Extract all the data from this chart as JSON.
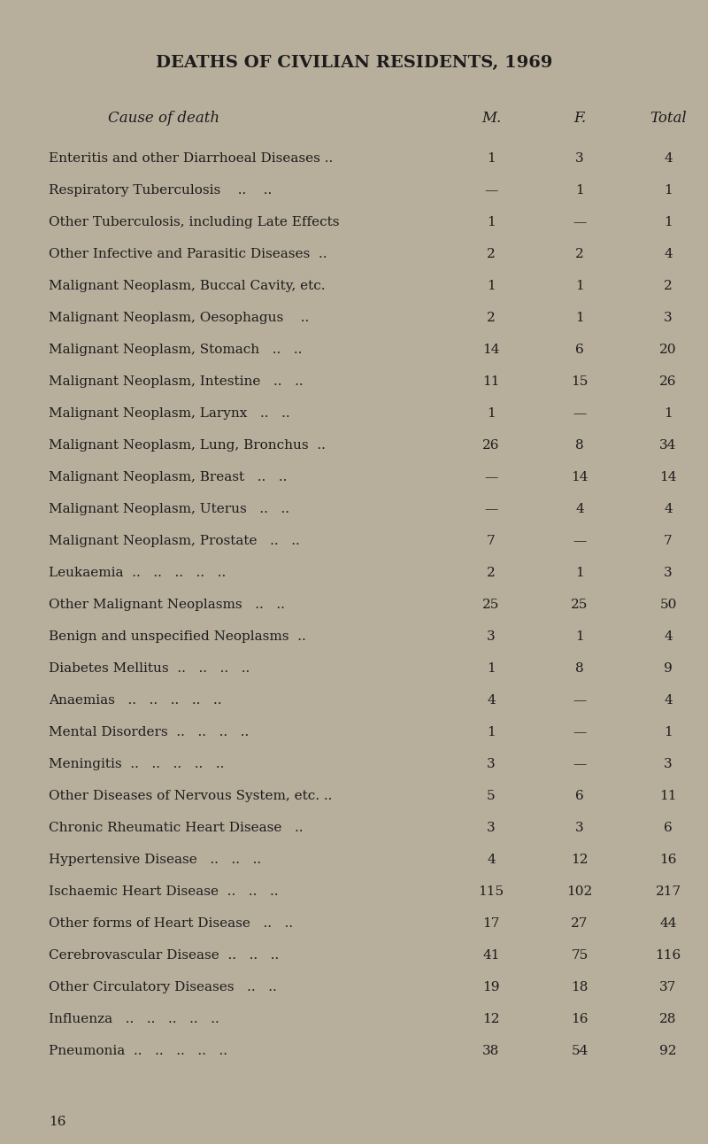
{
  "title": "DEATHS OF CIVILIAN RESIDENTS, 1969",
  "header": [
    "Cause of death",
    "M.",
    "F.",
    "Total"
  ],
  "rows": [
    [
      "Enteritis and other Diarrhoeal Diseases ..",
      "1",
      "3",
      "4"
    ],
    [
      "Respiratory Tuberculosis    ..    ..",
      "—",
      "1",
      "1"
    ],
    [
      "Other Tuberculosis, including Late Effects",
      "1",
      "—",
      "1"
    ],
    [
      "Other Infective and Parasitic Diseases  ..",
      "2",
      "2",
      "4"
    ],
    [
      "Malignant Neoplasm, Buccal Cavity, etc.",
      "1",
      "1",
      "2"
    ],
    [
      "Malignant Neoplasm, Oesophagus    ..",
      "2",
      "1",
      "3"
    ],
    [
      "Malignant Neoplasm, Stomach   ..   ..",
      "14",
      "6",
      "20"
    ],
    [
      "Malignant Neoplasm, Intestine   ..   ..",
      "11",
      "15",
      "26"
    ],
    [
      "Malignant Neoplasm, Larynx   ..   ..",
      "1",
      "—",
      "1"
    ],
    [
      "Malignant Neoplasm, Lung, Bronchus  ..",
      "26",
      "8",
      "34"
    ],
    [
      "Malignant Neoplasm, Breast   ..   ..",
      "—",
      "14",
      "14"
    ],
    [
      "Malignant Neoplasm, Uterus   ..   ..",
      "—",
      "4",
      "4"
    ],
    [
      "Malignant Neoplasm, Prostate   ..   ..",
      "7",
      "—",
      "7"
    ],
    [
      "Leukaemia  ..   ..   ..   ..   ..",
      "2",
      "1",
      "3"
    ],
    [
      "Other Malignant Neoplasms   ..   ..",
      "25",
      "25",
      "50"
    ],
    [
      "Benign and unspecified Neoplasms  ..",
      "3",
      "1",
      "4"
    ],
    [
      "Diabetes Mellitus  ..   ..   ..   ..",
      "1",
      "8",
      "9"
    ],
    [
      "Anaemias   ..   ..   ..   ..   ..",
      "4",
      "—",
      "4"
    ],
    [
      "Mental Disorders  ..   ..   ..   ..",
      "1",
      "—",
      "1"
    ],
    [
      "Meningitis  ..   ..   ..   ..   ..",
      "3",
      "—",
      "3"
    ],
    [
      "Other Diseases of Nervous System, etc. ..",
      "5",
      "6",
      "11"
    ],
    [
      "Chronic Rheumatic Heart Disease   ..",
      "3",
      "3",
      "6"
    ],
    [
      "Hypertensive Disease   ..   ..   ..",
      "4",
      "12",
      "16"
    ],
    [
      "Ischaemic Heart Disease  ..   ..   ..",
      "115",
      "102",
      "217"
    ],
    [
      "Other forms of Heart Disease   ..   ..",
      "17",
      "27",
      "44"
    ],
    [
      "Cerebrovascular Disease  ..   ..   ..",
      "41",
      "75",
      "116"
    ],
    [
      "Other Circulatory Diseases   ..   ..",
      "19",
      "18",
      "37"
    ],
    [
      "Influenza   ..   ..   ..   ..   ..",
      "12",
      "16",
      "28"
    ],
    [
      "Pneumonia  ..   ..   ..   ..   ..",
      "38",
      "54",
      "92"
    ]
  ],
  "footer": "16",
  "bg_color": "#b8ae9c",
  "text_color": "#1c1c1c",
  "title_fontsize": 14,
  "header_fontsize": 12,
  "row_fontsize": 11,
  "fig_width": 8.0,
  "fig_height": 12.92,
  "dpi": 100
}
